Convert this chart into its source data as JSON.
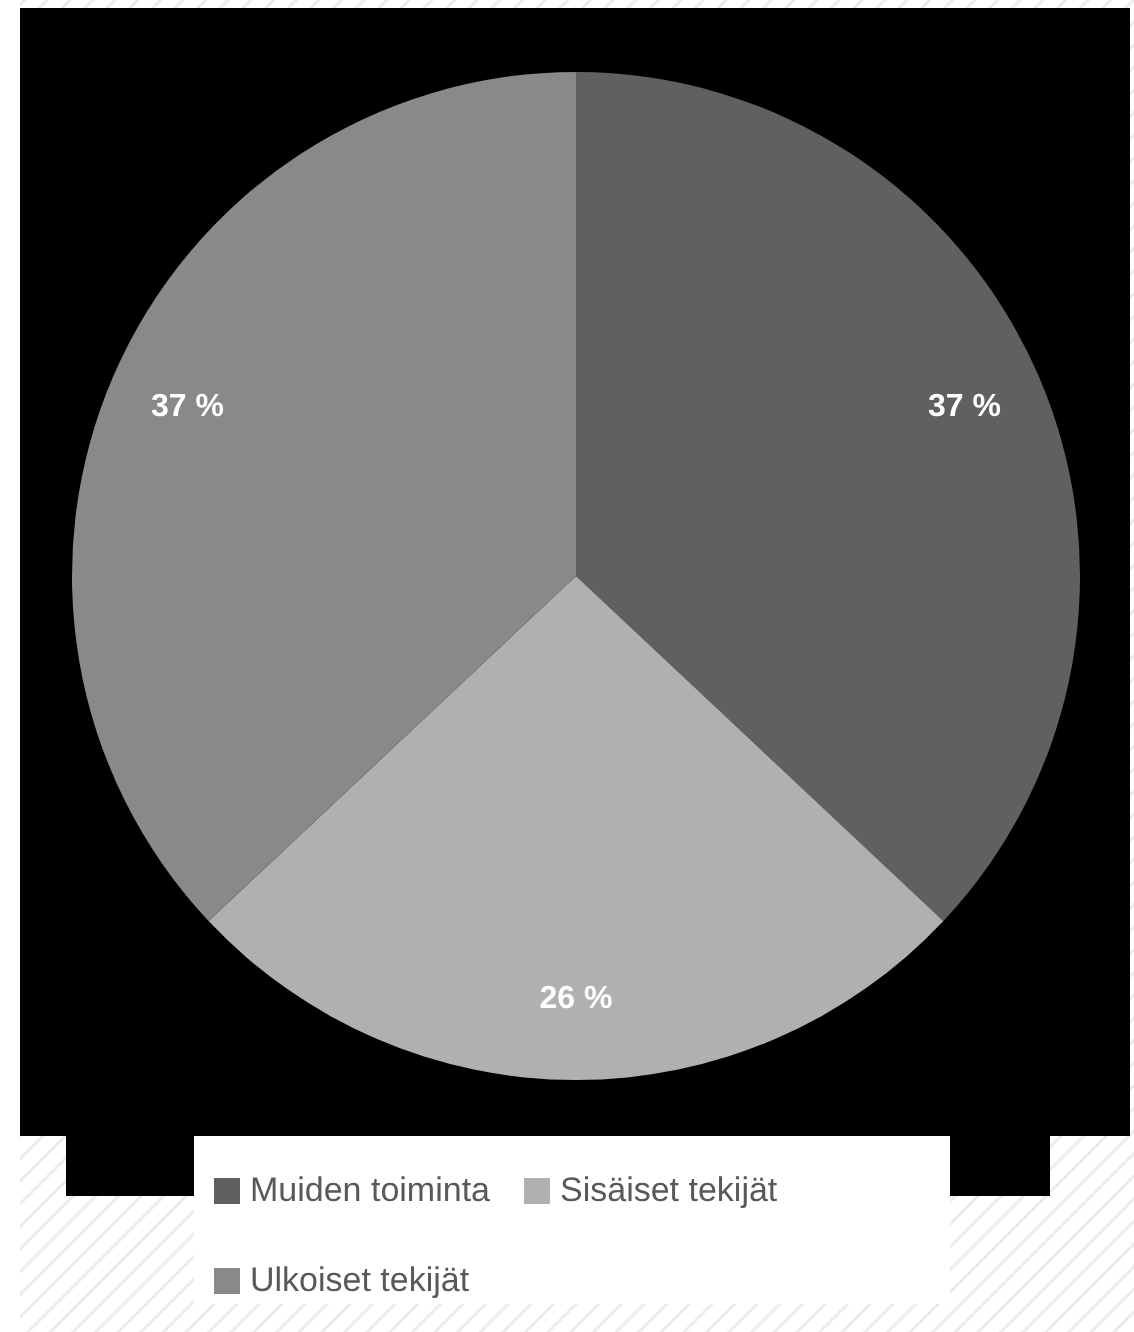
{
  "chart_data": {
    "type": "pie",
    "categories": [
      "Muiden toiminta",
      "Sisäiset tekijät",
      "Ulkoiset tekijät"
    ],
    "values": [
      37,
      26,
      37
    ],
    "colors": [
      "#606060",
      "#b0b0b0",
      "#898989"
    ],
    "value_labels": [
      "37 %",
      "26 %",
      "37 %"
    ],
    "legend": "bottom"
  }
}
